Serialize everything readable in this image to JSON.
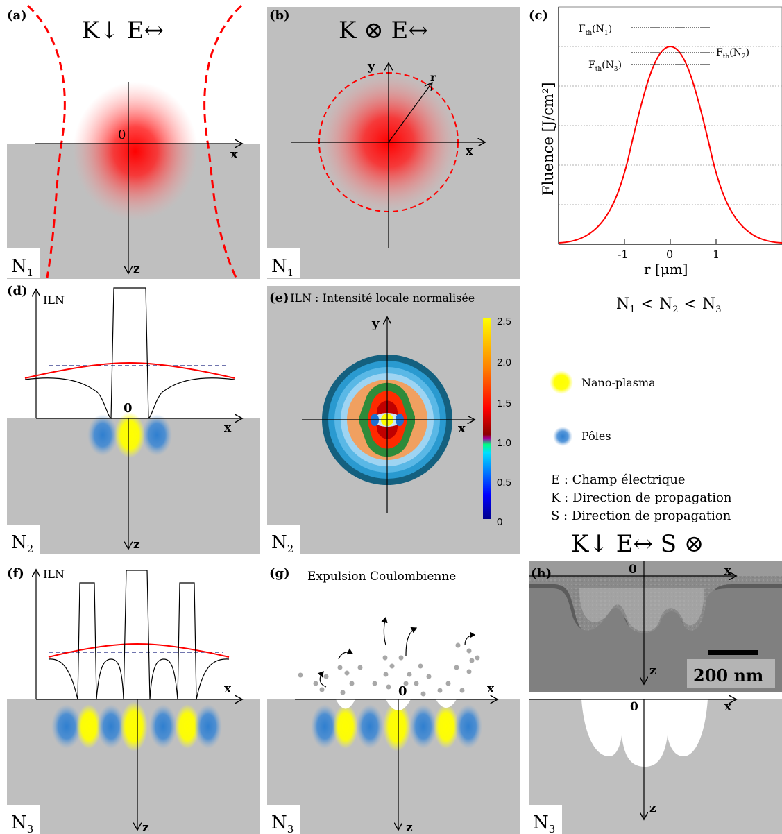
{
  "panels": {
    "a": {
      "label": "(a)",
      "title": "K↓ E↔",
      "x": "x",
      "z": "z",
      "origin": "0",
      "level": "N",
      "level_sub": "1"
    },
    "b": {
      "label": "(b)",
      "title": "K ⊗ E↔",
      "x": "x",
      "y": "y",
      "r": "r",
      "level": "N",
      "level_sub": "1"
    },
    "c": {
      "label": "(c)",
      "ylabel": "Fluence [J/cm²]",
      "xlabel": "r [μm]",
      "ticks": [
        "-1",
        "0",
        "1"
      ],
      "thresholds": [
        {
          "main": "F",
          "sub": "th",
          "arg": "(N",
          "argsub": "1",
          "close": ")"
        },
        {
          "main": "F",
          "sub": "th",
          "arg": "(N",
          "argsub": "2",
          "close": ")"
        },
        {
          "main": "F",
          "sub": "th",
          "arg": "(N",
          "argsub": "3",
          "close": ")"
        }
      ]
    },
    "relation": {
      "n1": "N",
      "s1": "1",
      "lt1": "<",
      "n2": "N",
      "s2": "2",
      "lt2": "<",
      "n3": "N",
      "s3": "3"
    },
    "d": {
      "label": "(d)",
      "iln": "ILN",
      "origin": "0",
      "x": "x",
      "z": "z",
      "level": "N",
      "level_sub": "2"
    },
    "e": {
      "label": "(e)",
      "title": "ILN : Intensité locale normalisée",
      "x": "x",
      "y": "y",
      "colorbar_ticks": [
        "2.5",
        "2.0",
        "1.5",
        "1.0",
        "0.5",
        "0"
      ],
      "level": "N",
      "level_sub": "2"
    },
    "legend": {
      "nano_plasma": "Nano-plasma",
      "poles": "Pôles",
      "def_e": "E : Champ électrique",
      "def_k": "K : Direction de propagation",
      "def_s": "S : Direction de propagation",
      "formula": "K↓ E↔ S ⊗"
    },
    "f": {
      "label": "(f)",
      "iln": "ILN",
      "x": "x",
      "z": "z",
      "level": "N",
      "level_sub": "3"
    },
    "g": {
      "label": "(g)",
      "title": "Expulsion Coulombienne",
      "origin": "0",
      "x": "x",
      "z": "z",
      "level": "N",
      "level_sub": "3"
    },
    "h": {
      "label": "(h)",
      "origin": "0",
      "x": "x",
      "z": "z",
      "scale": "200 nm",
      "origin2": "0",
      "x2": "x",
      "z2": "z",
      "level": "N",
      "level_sub": "3"
    }
  },
  "colors": {
    "substrate": "#bfbfbf",
    "laser": "#ff0000",
    "plasma": "#ffff00",
    "pole": "#2f7fd0"
  }
}
